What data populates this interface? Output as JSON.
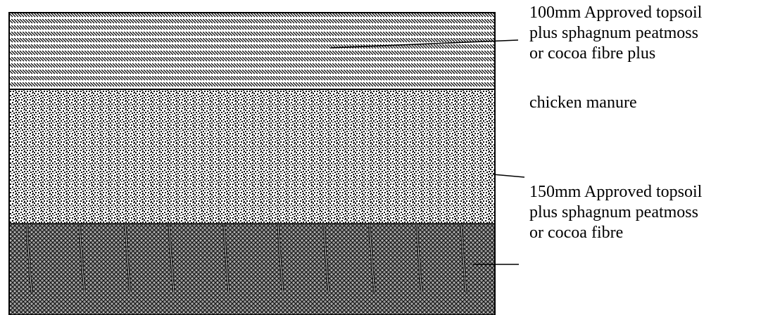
{
  "layers": [
    {
      "id": "top",
      "pattern": "diagonal-hatch",
      "label_lines": [
        "100mm Approved topsoil",
        "plus sphagnum peatmoss",
        "or cocoa fibre plus"
      ],
      "label_continuation": "chicken manure"
    },
    {
      "id": "middle",
      "pattern": "speckle-dots",
      "label_lines": [
        "150mm  Approved topsoil",
        "plus sphagnum peatmoss",
        "or cocoa fibre"
      ]
    },
    {
      "id": "bottom",
      "pattern": "crosshatch-with-roots",
      "root_count": 10
    }
  ],
  "colors": {
    "ink": "#000000",
    "paper": "#ffffff",
    "bottom_fill": "#9a9a9a"
  }
}
